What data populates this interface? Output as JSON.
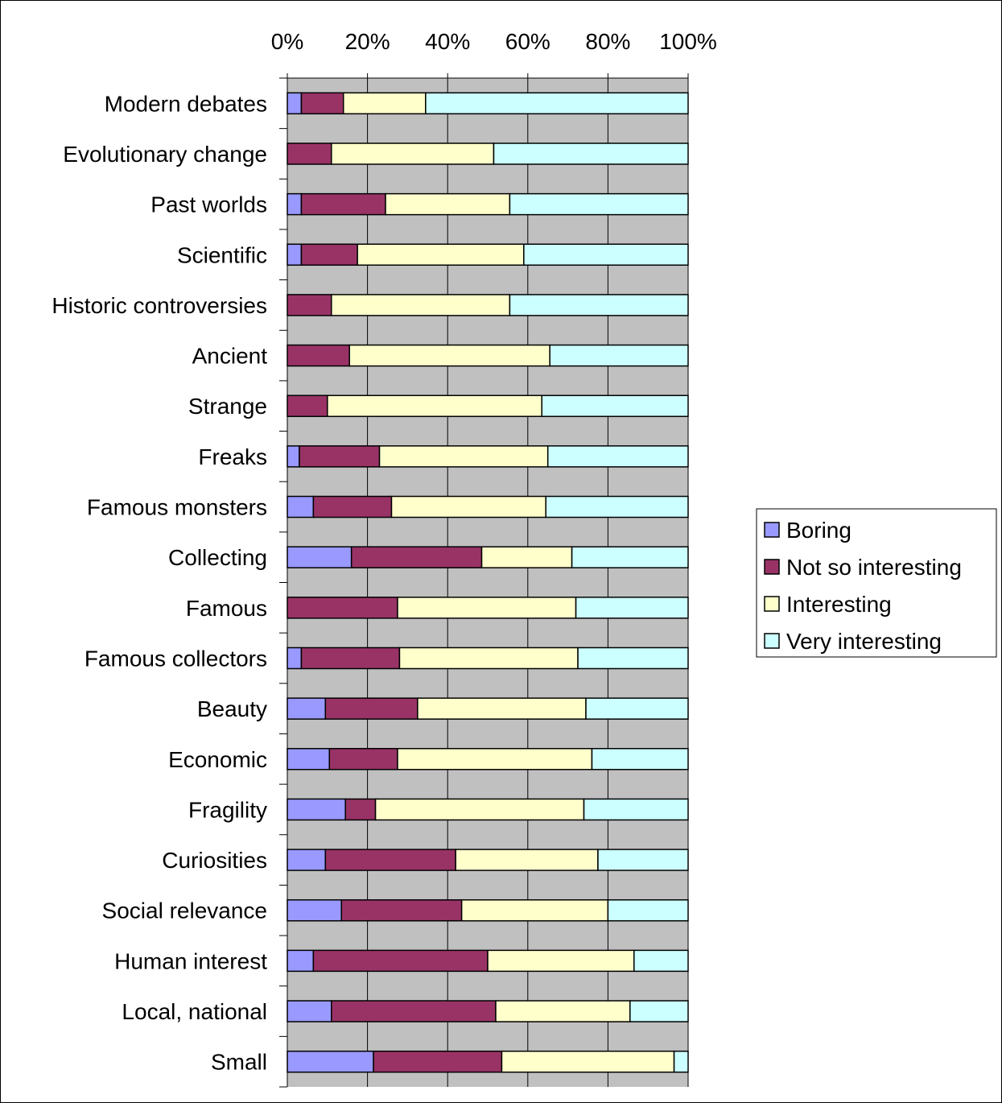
{
  "chart_data": {
    "type": "bar",
    "orientation": "horizontal",
    "stacked": "percent",
    "xlim": [
      0,
      100
    ],
    "x_ticks": [
      "0%",
      "20%",
      "40%",
      "60%",
      "80%",
      "100%"
    ],
    "x_tick_values": [
      0,
      20,
      40,
      60,
      80,
      100
    ],
    "x_axis_position": "top",
    "grid": true,
    "legend_position": "right",
    "categories": [
      "Modern debates",
      "Evolutionary change",
      "Past worlds",
      "Scientific",
      "Historic controversies",
      "Ancient",
      "Strange",
      "Freaks",
      "Famous monsters",
      "Collecting",
      "Famous",
      "Famous collectors",
      "Beauty",
      "Economic",
      "Fragility",
      "Curiosities",
      "Social relevance",
      "Human interest",
      "Local, national",
      "Small"
    ],
    "series": [
      {
        "name": "Boring",
        "color": "#9999ff",
        "values": [
          3.5,
          0,
          3.5,
          3.5,
          0,
          0,
          0,
          3,
          6.5,
          16,
          0,
          3.5,
          9.5,
          10.5,
          14.5,
          9.5,
          13.5,
          6.5,
          11,
          21.5
        ]
      },
      {
        "name": "Not so interesting",
        "color": "#993366",
        "values": [
          10.5,
          11,
          21,
          14,
          11,
          15.5,
          10,
          20,
          19.5,
          32.5,
          27.5,
          24.5,
          23,
          17,
          7.5,
          32.5,
          30,
          43.5,
          41,
          32
        ]
      },
      {
        "name": "Interesting",
        "color": "#ffffcc",
        "values": [
          20.5,
          40.5,
          31,
          41.5,
          44.5,
          50,
          53.5,
          42,
          38.5,
          22.5,
          44.5,
          44.5,
          42,
          48.5,
          52,
          35.5,
          36.5,
          36.5,
          33.5,
          43
        ]
      },
      {
        "name": "Very interesting",
        "color": "#ccffff",
        "values": [
          65.5,
          48.5,
          44.5,
          41,
          44.5,
          34.5,
          36.5,
          35,
          35.5,
          29,
          28,
          27.5,
          25.5,
          24,
          26,
          22.5,
          20,
          13.5,
          14.5,
          3.5
        ]
      }
    ],
    "plot_bg": "#c0c0c0"
  }
}
